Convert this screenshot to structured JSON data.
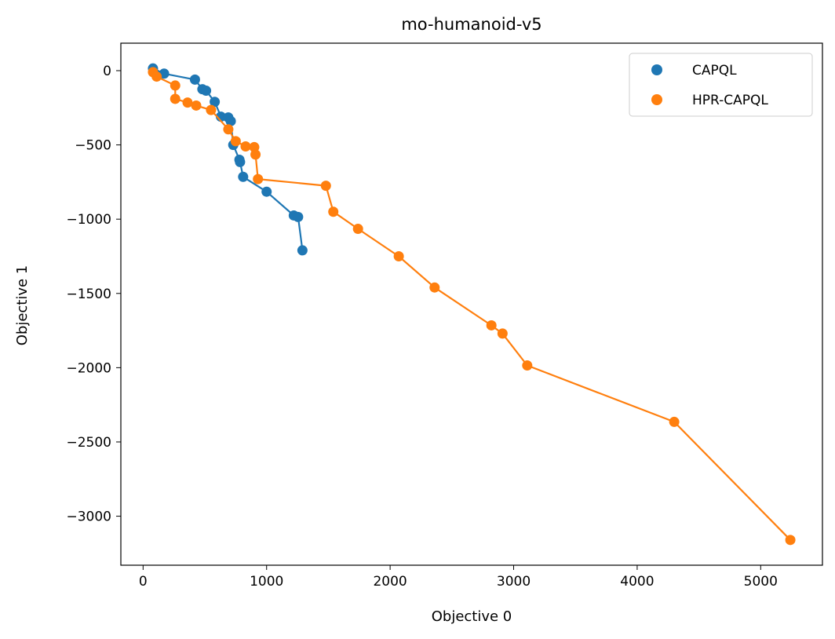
{
  "chart_data": {
    "type": "scatter",
    "title": "mo-humanoid-v5",
    "xlabel": "Objective 0",
    "ylabel": "Objective 1",
    "xlim": [
      -180,
      5500
    ],
    "ylim": [
      -3330,
      185
    ],
    "xticks": [
      0,
      1000,
      2000,
      3000,
      4000,
      5000
    ],
    "xtick_labels": [
      "0",
      "1000",
      "2000",
      "3000",
      "4000",
      "5000"
    ],
    "yticks": [
      0,
      -500,
      -1000,
      -1500,
      -2000,
      -2500,
      -3000
    ],
    "ytick_labels": [
      "0",
      "−500",
      "−1000",
      "−1500",
      "−2000",
      "−2500",
      "−3000"
    ],
    "grid": false,
    "legend_position": "top-right",
    "series": [
      {
        "name": "CAPQL",
        "color": "#1f77b4",
        "x": [
          80,
          170,
          420,
          480,
          510,
          580,
          630,
          690,
          710,
          730,
          780,
          785,
          810,
          1000,
          1220,
          1255,
          1290
        ],
        "y": [
          15,
          -20,
          -60,
          -125,
          -135,
          -210,
          -310,
          -315,
          -340,
          -500,
          -600,
          -615,
          -715,
          -815,
          -975,
          -985,
          -1210
        ]
      },
      {
        "name": "HPR-CAPQL",
        "color": "#ff7f0e",
        "x": [
          80,
          110,
          260,
          260,
          360,
          430,
          550,
          690,
          750,
          830,
          900,
          910,
          930,
          1480,
          1540,
          1740,
          2070,
          2360,
          2820,
          2910,
          3110,
          4300,
          5240
        ],
        "y": [
          -10,
          -40,
          -100,
          -190,
          -215,
          -235,
          -265,
          -395,
          -475,
          -510,
          -515,
          -565,
          -730,
          -775,
          -950,
          -1065,
          -1250,
          -1460,
          -1715,
          -1770,
          -1985,
          -2365,
          -3160
        ]
      }
    ]
  }
}
